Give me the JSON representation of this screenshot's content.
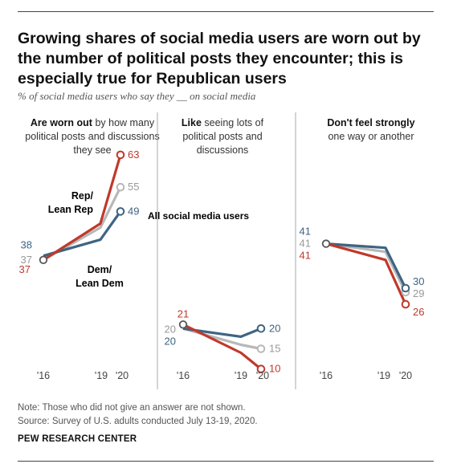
{
  "title": "Growing shares of social media users are worn out by the number of political posts they encounter; this is especially true for Republican users",
  "subtitle": "% of social media users who say they __ on social media",
  "panels": [
    {
      "head_bold": "Are worn out",
      "head_rest": "by how many political posts and discussions they see"
    },
    {
      "head_bold": "Like",
      "head_rest": "seeing lots of political posts and discussions"
    },
    {
      "head_bold": "Don't feel strongly",
      "head_rest": "one way or another"
    }
  ],
  "labels": {
    "rep": [
      "Rep/",
      "Lean Rep"
    ],
    "dem": [
      "Dem/",
      "Lean Dem"
    ],
    "all": "All social media users"
  },
  "note": "Note: Those who did not give an answer are not shown.",
  "source": "Source: Survey of U.S. adults conducted July 13-19, 2020.",
  "brand": "PEW RESEARCH CENTER",
  "colors": {
    "rep": "#c0392b",
    "dem": "#3f6482",
    "all": "#b8b8b8"
  },
  "chart_data": [
    {
      "type": "line",
      "title": "Are worn out by how many political posts and discussions they see",
      "x": [
        "'16",
        "'19",
        "'20"
      ],
      "series": [
        {
          "name": "Rep/Lean Rep",
          "values": [
            37,
            46,
            63
          ]
        },
        {
          "name": "All social media users",
          "values": [
            37,
            45,
            55
          ]
        },
        {
          "name": "Dem/Lean Dem",
          "values": [
            38,
            42,
            49
          ]
        }
      ]
    },
    {
      "type": "line",
      "title": "Like seeing lots of political posts and discussions",
      "x": [
        "'16",
        "'19",
        "'20"
      ],
      "series": [
        {
          "name": "Rep/Lean Rep",
          "values": [
            21,
            14,
            10
          ]
        },
        {
          "name": "All social media users",
          "values": [
            20,
            16,
            15
          ]
        },
        {
          "name": "Dem/Lean Dem",
          "values": [
            20,
            18,
            20
          ]
        }
      ]
    },
    {
      "type": "line",
      "title": "Don't feel strongly one way or another",
      "x": [
        "'16",
        "'19",
        "'20"
      ],
      "series": [
        {
          "name": "Rep/Lean Rep",
          "values": [
            41,
            37,
            26
          ]
        },
        {
          "name": "All social media users",
          "values": [
            41,
            39,
            29
          ]
        },
        {
          "name": "Dem/Lean Dem",
          "values": [
            41,
            40,
            30
          ]
        }
      ]
    }
  ]
}
